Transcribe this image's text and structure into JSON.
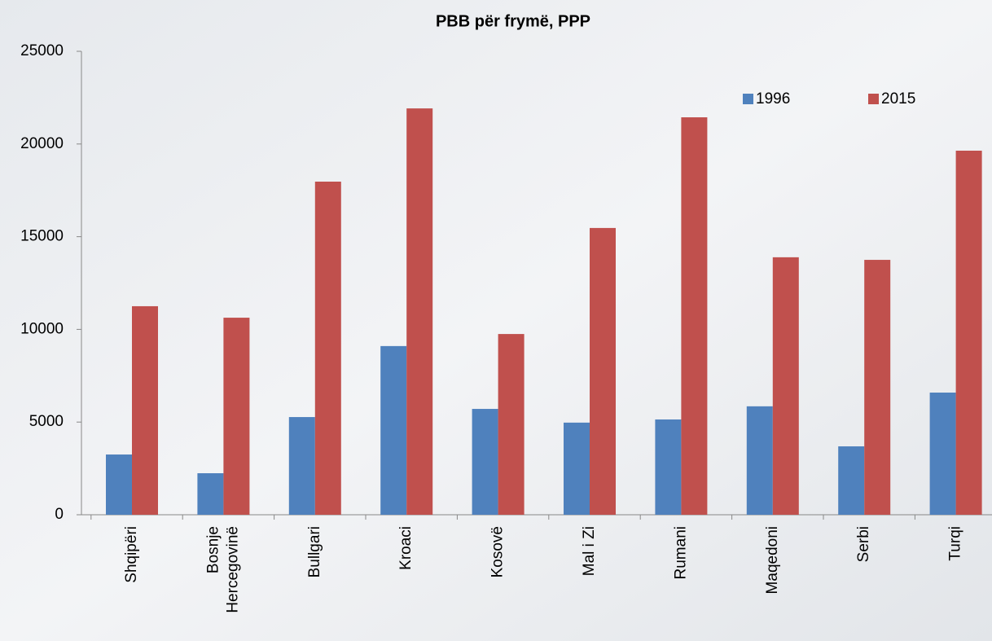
{
  "chart_data": {
    "type": "bar",
    "title": "PBB për frymë, PPP",
    "categories": [
      "Shqipëri",
      "Bosnje Hercegovinë",
      "Bullgari",
      "Kroaci",
      "Kosovë",
      "Mal i Zi",
      "Rumani",
      "Maqedoni",
      "Serbi",
      "Turqi"
    ],
    "series": [
      {
        "name": "1996",
        "color": "#4f81bd",
        "values": [
          3250,
          2240,
          5270,
          9100,
          5710,
          4970,
          5140,
          5850,
          3690,
          6590
        ]
      },
      {
        "name": "2015",
        "color": "#c0504d",
        "values": [
          11250,
          10630,
          17970,
          21920,
          9750,
          15470,
          21440,
          13890,
          13750,
          19640
        ]
      }
    ],
    "ylim": [
      0,
      25000
    ],
    "yticks": [
      0,
      5000,
      10000,
      15000,
      20000,
      25000
    ]
  }
}
